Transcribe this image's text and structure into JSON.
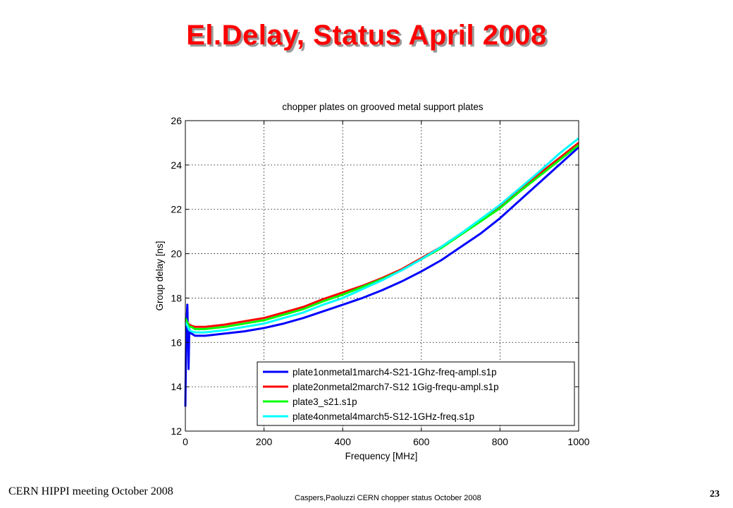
{
  "slide": {
    "title": "El.Delay, Status April 2008",
    "footer_left": "CERN HIPPI meeting October 2008",
    "footer_center": "Caspers,Paoluzzi CERN chopper status October 2008",
    "page_number": "23"
  },
  "chart_data": {
    "type": "line",
    "title": "chopper plates on grooved metal support plates",
    "xlabel": "Frequency [MHz]",
    "ylabel": "Group delay [ns]",
    "xlim": [
      0,
      1000
    ],
    "ylim": [
      12,
      26
    ],
    "xticks": [
      0,
      200,
      400,
      600,
      800,
      1000
    ],
    "yticks": [
      12,
      14,
      16,
      18,
      20,
      22,
      24,
      26
    ],
    "grid": true,
    "legend_position": "bottom-right",
    "series": [
      {
        "name": "plate1onmetal1march4-S21-1Ghz-freq-ampl.s1p",
        "color": "#0000ff",
        "x": [
          0,
          2,
          5,
          8,
          10,
          15,
          25,
          50,
          100,
          150,
          200,
          250,
          300,
          350,
          400,
          450,
          500,
          550,
          600,
          650,
          700,
          750,
          800,
          850,
          900,
          950,
          1000
        ],
        "y": [
          13.1,
          16.4,
          17.7,
          14.8,
          16.6,
          16.4,
          16.3,
          16.3,
          16.4,
          16.5,
          16.65,
          16.85,
          17.1,
          17.4,
          17.7,
          18.0,
          18.35,
          18.75,
          19.2,
          19.7,
          20.3,
          20.9,
          21.6,
          22.4,
          23.2,
          24.0,
          24.8
        ]
      },
      {
        "name": "plate2onmetal2march7-S12 1Gig-frequ-ampl.s1p",
        "color": "#ff0000",
        "x": [
          0,
          5,
          10,
          15,
          25,
          50,
          100,
          150,
          200,
          250,
          300,
          350,
          400,
          450,
          500,
          550,
          600,
          650,
          700,
          750,
          800,
          850,
          900,
          950,
          1000
        ],
        "y": [
          17.0,
          16.9,
          16.8,
          16.75,
          16.7,
          16.7,
          16.8,
          16.95,
          17.1,
          17.35,
          17.6,
          17.95,
          18.25,
          18.55,
          18.9,
          19.3,
          19.8,
          20.3,
          20.9,
          21.5,
          22.1,
          22.9,
          23.6,
          24.3,
          25.0
        ]
      },
      {
        "name": "plate3_s21.s1p",
        "color": "#00ff00",
        "x": [
          0,
          5,
          10,
          15,
          25,
          50,
          100,
          150,
          200,
          250,
          300,
          350,
          400,
          450,
          500,
          550,
          600,
          650,
          700,
          750,
          800,
          850,
          900,
          950,
          1000
        ],
        "y": [
          17.1,
          16.9,
          16.7,
          16.7,
          16.6,
          16.6,
          16.7,
          16.85,
          17.0,
          17.25,
          17.5,
          17.85,
          18.15,
          18.5,
          18.85,
          19.25,
          19.75,
          20.25,
          20.85,
          21.45,
          22.05,
          22.8,
          23.5,
          24.2,
          24.9
        ]
      },
      {
        "name": "plate4onmetal4march5-S12-1GHz-freq.s1p",
        "color": "#00ffff",
        "x": [
          0,
          5,
          10,
          15,
          25,
          50,
          100,
          150,
          200,
          250,
          300,
          350,
          400,
          450,
          500,
          550,
          600,
          650,
          700,
          750,
          800,
          850,
          900,
          950,
          1000
        ],
        "y": [
          16.9,
          16.75,
          16.55,
          16.5,
          16.45,
          16.45,
          16.55,
          16.7,
          16.85,
          17.1,
          17.35,
          17.7,
          18.0,
          18.4,
          18.8,
          19.25,
          19.75,
          20.3,
          20.9,
          21.55,
          22.2,
          22.95,
          23.7,
          24.5,
          25.2
        ]
      }
    ]
  }
}
